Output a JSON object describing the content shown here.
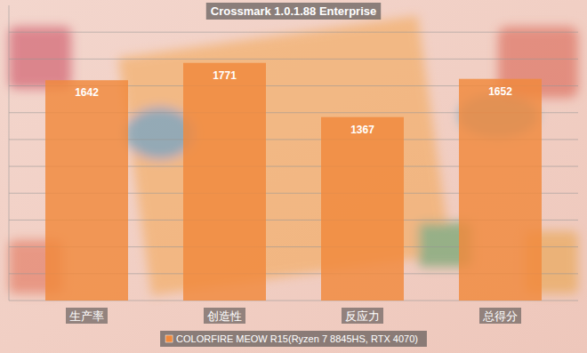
{
  "chart_data": {
    "type": "bar",
    "title": "Crossmark 1.0.1.88 Enterprise",
    "categories": [
      "生产率",
      "创造性",
      "反应力",
      "总得分"
    ],
    "series": [
      {
        "name": "COLORFIRE MEOW R15(Ryzen 7 8845HS, RTX 4070)",
        "color": "#f0893c",
        "values": [
          1642,
          1771,
          1367,
          1652
        ]
      }
    ],
    "ylim": [
      0,
      2200
    ],
    "yticks": [
      0,
      200,
      400,
      600,
      800,
      1000,
      1200,
      1400,
      1600,
      1800,
      2000
    ],
    "grid": true,
    "data_labels": true,
    "tick_labels": false,
    "legend": "bottom"
  }
}
